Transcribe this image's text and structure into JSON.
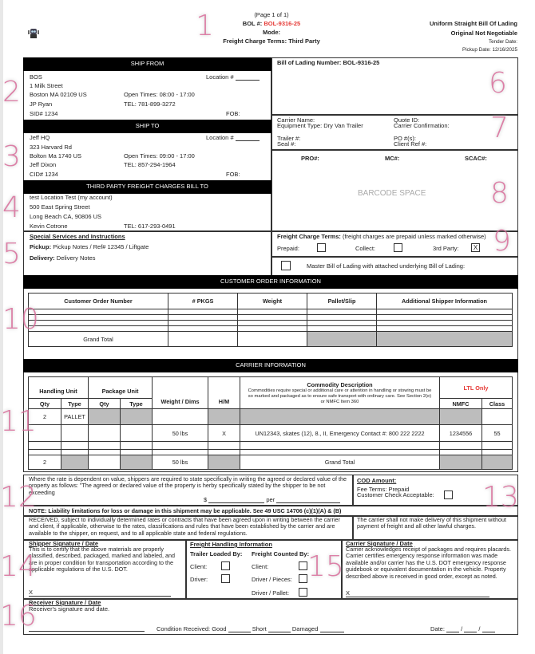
{
  "header": {
    "page": "(Page 1 of 1)",
    "bol_label": "BOL #:",
    "bol_value": "BOL-9316-25",
    "mode": "Mode:",
    "freight_terms": "Freight Charge Terms: Third Party",
    "title": "Uniform Straight Bill Of Lading",
    "subtitle": "Original Not Negotiable",
    "tender_date": "Tender Date:",
    "pickup_date": "Pickup Date: 12/16/2025",
    "accent": "#e53935"
  },
  "ship_from": {
    "title": "SHIP FROM",
    "name": "BOS",
    "location": "Location #",
    "street": "1 Milk Street",
    "city": "Boston MA 02109 US",
    "open": "Open Times: 08:00 - 17:00",
    "contact": "JP Ryan",
    "tel": "TEL: 781-899-3272",
    "sid": "SID# 1234",
    "fob": "FOB:"
  },
  "ship_to": {
    "title": "SHIP TO",
    "name": "Jeff HQ",
    "location": "Location #",
    "street": "323 Harvard Rd",
    "city": "Bolton Ma 1740 US",
    "open": "Open Times: 09:00 - 17:00",
    "contact": "Jeff Dixon",
    "tel": "TEL: 857-294-1964",
    "cid": "CID# 1234",
    "fob": "FOB:"
  },
  "third_party": {
    "title": "THIRD PARTY FREIGHT CHARGES BILL TO",
    "name": "test Location Test (my account)",
    "street": "500 East Spring Street",
    "city": "Long Beach CA, 90806 US",
    "contact": "Kevin Cotrone",
    "tel": "TEL: 617-293-0491"
  },
  "special": {
    "title": "Special Services and Instructions",
    "pickup_label": "Pickup:",
    "pickup": "Pickup Notes / Ref# 12345 / Liftgate",
    "delivery_label": "Delivery:",
    "delivery": "Delivery Notes"
  },
  "right": {
    "bol_number": "Bill of Lading Number: BOL-9316-25",
    "carrier_name": "Carrier Name:",
    "equipment": "Equipment Type: Dry Van Trailer",
    "quote": "Quote ID:",
    "confirmation": "Carrier Confirmation:",
    "trailer": "Trailer #:",
    "seal": "Seal #:",
    "po": "PO #(s):",
    "client_ref": "Client Ref #:",
    "pro": "PRO#:",
    "mc": "MC#:",
    "scac": "SCAC#:",
    "barcode": "BARCODE SPACE"
  },
  "terms": {
    "title": "Freight Charge Terms:",
    "note": "(freight charges are prepaid unless marked otherwise)",
    "prepaid": "Prepaid:",
    "collect": "Collect:",
    "third": "3rd Party:",
    "third_mark": "X",
    "master": "Master Bill of Lading with attached underlying Bill of Lading:"
  },
  "customer_order": {
    "title": "CUSTOMER ORDER INFORMATION",
    "headers": [
      "Customer Order Number",
      "# PKGS",
      "Weight",
      "Pallet/Slip",
      "Additional Shipper Information"
    ],
    "grand_total": "Grand Total"
  },
  "carrier": {
    "title": "CARRIER INFORMATION",
    "handling_unit": "Handling Unit",
    "package_unit": "Package Unit",
    "qty": "Qty",
    "type": "Type",
    "weight": "Weight / Dims",
    "hm": "H/M",
    "commodity": "Commodity Description",
    "commodity_note": "Commodities require special or additional care or attention in handling or stowing must be so marked and packaged as to ensure safe transport with ordinary care. See Section 2(e) or NMFC Item 360",
    "ltl": "LTL Only",
    "nmfc": "NMFC",
    "class": "Class",
    "row1": {
      "qty": "2",
      "type": "PALLET"
    },
    "row2": {
      "weight": "50 lbs",
      "hm": "X",
      "desc": "UN12343, skates (12), 8., II, Emergency Contact #: 800 222 2222",
      "nmfc": "1234556",
      "class": "55"
    },
    "total": {
      "qty": "2",
      "weight": "50 lbs",
      "label": "Grand Total"
    }
  },
  "value": {
    "text": "Where the rate is dependent on value, shippers are required to state specifically in writing the agreed or declared value of the property as follows: \"The agreed or declared value of the property is herby specifically stated by the shipper to be not exceeding",
    "dollar": "$",
    "per": "per"
  },
  "cod": {
    "title": "COD Amount:",
    "fee": "Fee Terms: Prepaid",
    "check": "Customer Check Acceptable:"
  },
  "note": "NOTE: Liability limitations for loss or damage in this shipment may be applicable. See 49 USC 14706 (c)(1)(A) & (B)",
  "received": "RECEIVED, subject to individually determined rates or contracts that have been agreed upon in writing between the carrier and client, if applicable, otherwise to the rates, classifications and rules that have been established by the carrier and are available to the shipper, on request, and to all applicable state and federal regulations.",
  "no_delivery": "The carrier shall not make delivery of this shipment without payment of freight and all other lawful charges.",
  "shipper_sig": {
    "title": "Shipper Signature / Date",
    "text": "This is to certify that the above materials are properly classified, described, packaged, marked and labeled, and are in proper condition for transportation according to the applicable regulations of the U.S. DOT.",
    "x": "X"
  },
  "handling": {
    "title": "Freight Handling Information",
    "loaded": "Trailer Loaded By:",
    "counted": "Freight Counted By:",
    "client": "Client:",
    "driver": "Driver:",
    "pieces": "Driver / Pieces:",
    "pallet": "Driver / Pallet:"
  },
  "carrier_sig": {
    "title": "Carrier Signature / Date",
    "text": "Carrier acknowledges receipt of packages and requires placards. Carrier certifies emergency response information was made available and/or carrier has the U.S. DOT emergency response guidebook or equivalent documentation in the vehicle. Property described above is received in good order, except as noted.",
    "x": "X"
  },
  "receiver": {
    "title": "Receiver Signature / Date",
    "text": "Receiver's signature and date.",
    "condition": "Condition Received: Good",
    "short": "Short",
    "damaged": "Damaged",
    "date": "Date:"
  },
  "annotations": [
    "1",
    "2",
    "3",
    "4",
    "5",
    "6",
    "7",
    "8",
    "9",
    "10",
    "11",
    "12",
    "13",
    "14",
    "15",
    "16"
  ]
}
